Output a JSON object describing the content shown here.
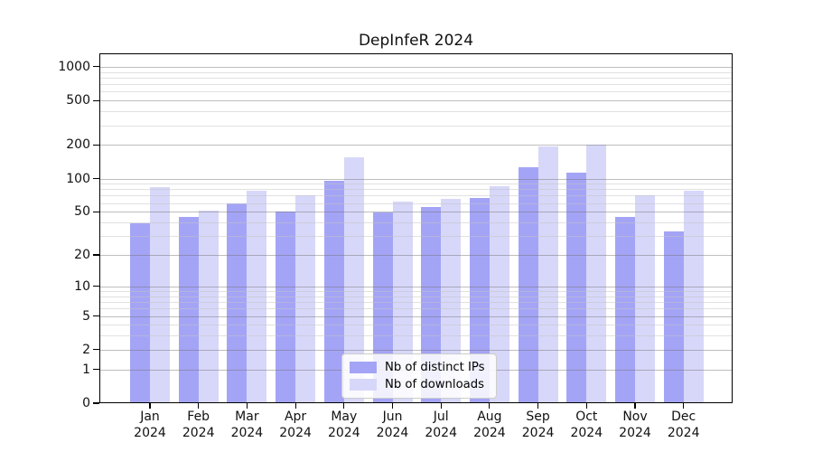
{
  "chart_data": {
    "type": "bar",
    "title": "DepInfeR 2024",
    "y_scale": "log10(value+1)",
    "ylim": [
      0,
      1300
    ],
    "y_ticks": [
      0,
      1,
      2,
      5,
      10,
      20,
      50,
      100,
      200,
      500,
      1000
    ],
    "y_minor_gridlines": [
      3,
      4,
      6,
      7,
      8,
      9,
      30,
      40,
      60,
      70,
      80,
      90,
      300,
      400,
      600,
      700,
      800,
      900
    ],
    "grid": true,
    "categories": [
      "Jan",
      "Feb",
      "Mar",
      "Apr",
      "May",
      "Jun",
      "Jul",
      "Aug",
      "Sep",
      "Oct",
      "Nov",
      "Dec"
    ],
    "x_year": "2024",
    "series": [
      {
        "name": "Nb of distinct IPs",
        "color": "#a4a4f6",
        "values": [
          39,
          45,
          60,
          50,
          95,
          49,
          55,
          67,
          126,
          112,
          45,
          33
        ]
      },
      {
        "name": "Nb of downloads",
        "color": "#d7d7f9",
        "values": [
          84,
          51,
          78,
          70,
          155,
          62,
          65,
          85,
          194,
          200,
          70,
          78
        ]
      }
    ],
    "legend_position": "bottom-center"
  }
}
